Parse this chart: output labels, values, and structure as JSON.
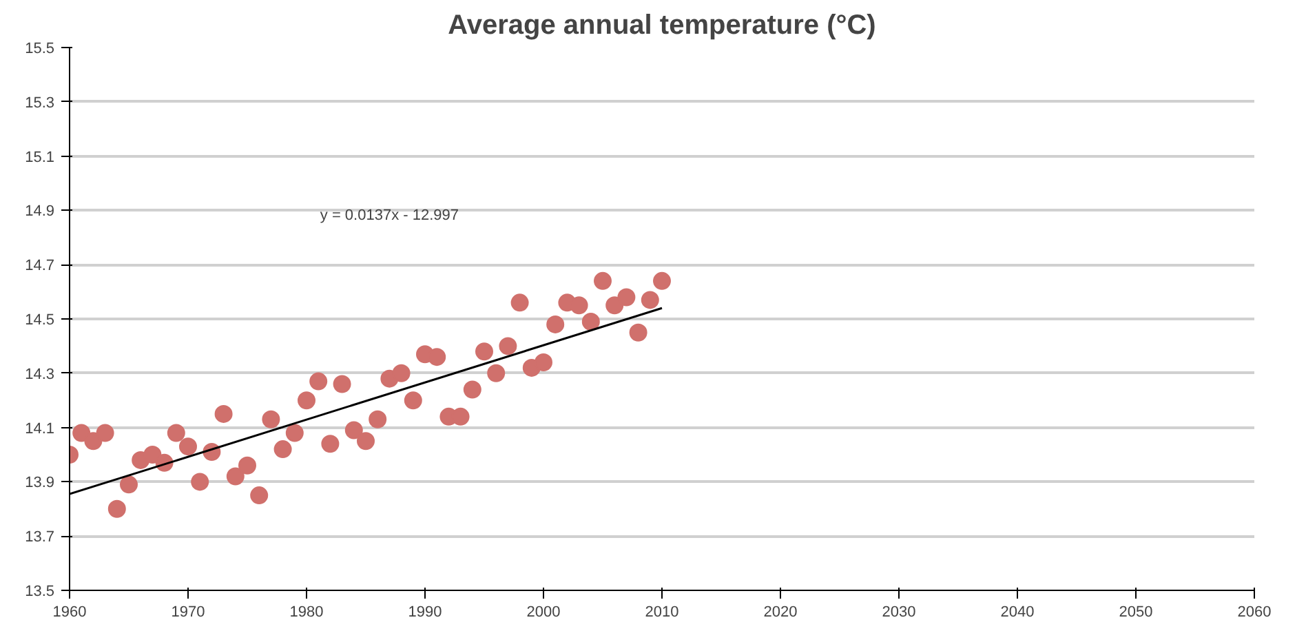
{
  "chart_data": {
    "type": "scatter",
    "title": "Average annual temperature (°C)",
    "x": [
      1960,
      1961,
      1962,
      1963,
      1964,
      1965,
      1966,
      1967,
      1968,
      1969,
      1970,
      1971,
      1972,
      1973,
      1974,
      1975,
      1976,
      1977,
      1978,
      1979,
      1980,
      1981,
      1982,
      1983,
      1984,
      1985,
      1986,
      1987,
      1988,
      1989,
      1990,
      1991,
      1992,
      1993,
      1994,
      1995,
      1996,
      1997,
      1998,
      1999,
      2000,
      2001,
      2002,
      2003,
      2004,
      2005,
      2006,
      2007,
      2008,
      2009,
      2010
    ],
    "series": [
      {
        "color": "#d0706c",
        "marker": "circle",
        "values": [
          14.0,
          14.08,
          14.05,
          14.08,
          13.8,
          13.89,
          13.98,
          14.0,
          13.97,
          14.08,
          14.03,
          13.9,
          14.01,
          14.15,
          13.92,
          13.96,
          13.85,
          14.13,
          14.02,
          14.08,
          14.2,
          14.27,
          14.04,
          14.26,
          14.09,
          14.05,
          14.13,
          14.28,
          14.3,
          14.2,
          14.37,
          14.36,
          14.14,
          14.14,
          14.24,
          14.38,
          14.3,
          14.4,
          14.56,
          14.32,
          14.34,
          14.48,
          14.56,
          14.55,
          14.49,
          14.64,
          14.55,
          14.58,
          14.45,
          14.57,
          14.64
        ]
      },
      {
        "type": "line",
        "color": "#000000",
        "x": [
          1960,
          2010
        ],
        "values": [
          13.855,
          14.54
        ]
      }
    ],
    "annotations": [
      "y = 0.0137x - 12.997"
    ],
    "xlim": [
      1960,
      2060
    ],
    "xticks": [
      1960,
      1970,
      1980,
      1990,
      2000,
      2010,
      2020,
      2030,
      2040,
      2050,
      2060
    ],
    "ylim": [
      13.5,
      15.5
    ],
    "yticks": [
      13.5,
      13.7,
      13.9,
      14.1,
      14.3,
      14.5,
      14.7,
      14.9,
      15.1,
      15.3,
      15.5
    ],
    "grid": "y"
  }
}
